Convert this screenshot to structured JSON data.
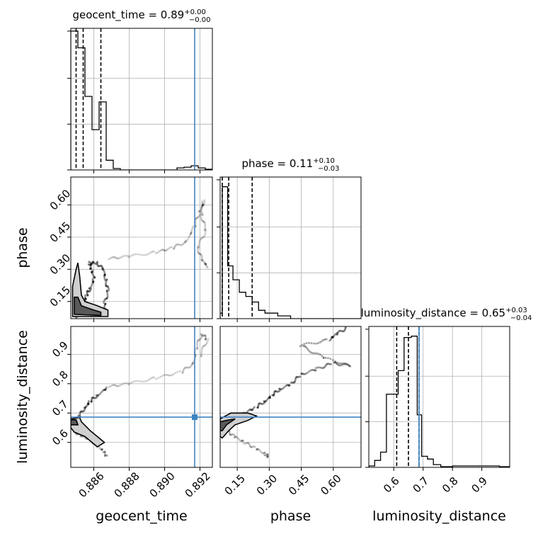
{
  "figure": {
    "type": "corner-plot",
    "colors": {
      "truth": "#3f84c2",
      "hist": "#000000",
      "grid": "#b0b0b0",
      "density": "#000000"
    }
  },
  "chart_data": {
    "type": "corner",
    "parameters": [
      "geocent_time",
      "phase",
      "luminosity_distance"
    ],
    "truths": {
      "geocent_time": 0.8917,
      "phase": null,
      "luminosity_distance": 0.686
    },
    "panels": [
      {
        "id": "hist-geocent_time",
        "type": "histogram",
        "title": {
          "main": "geocent_time = 0.89",
          "sup": "+0.00",
          "sub": "−0.00"
        },
        "xlim": [
          0.8847,
          0.8927
        ],
        "ymax": 1.0,
        "quantiles": [
          0.885,
          0.8854,
          0.8864
        ],
        "truth_x": 0.8917,
        "steps": [
          [
            0.8847,
            0.0
          ],
          [
            0.8847,
            1.0
          ],
          [
            0.8851,
            1.0
          ],
          [
            0.8851,
            0.88
          ],
          [
            0.8855,
            0.88
          ],
          [
            0.8855,
            0.53
          ],
          [
            0.8859,
            0.53
          ],
          [
            0.8859,
            0.29
          ],
          [
            0.8863,
            0.29
          ],
          [
            0.8863,
            0.49
          ],
          [
            0.8867,
            0.49
          ],
          [
            0.8867,
            0.07
          ],
          [
            0.8871,
            0.07
          ],
          [
            0.8871,
            0.01
          ],
          [
            0.8875,
            0.01
          ],
          [
            0.8875,
            0.0
          ],
          [
            0.8907,
            0.0
          ],
          [
            0.8907,
            0.015
          ],
          [
            0.8911,
            0.015
          ],
          [
            0.8911,
            0.02
          ],
          [
            0.8915,
            0.02
          ],
          [
            0.8915,
            0.03
          ],
          [
            0.8919,
            0.03
          ],
          [
            0.8919,
            0.015
          ],
          [
            0.8923,
            0.015
          ],
          [
            0.8923,
            0.005
          ],
          [
            0.8927,
            0.005
          ]
        ]
      },
      {
        "id": "hist-phase",
        "type": "histogram",
        "title": {
          "main": "phase = 0.11",
          "sup": "+0.10",
          "sub": "−0.03"
        },
        "xlim": [
          0.07,
          0.73
        ],
        "ymax": 1.0,
        "quantiles": [
          0.08,
          0.11,
          0.22
        ],
        "steps": [
          [
            0.07,
            0.0
          ],
          [
            0.07,
            0.04
          ],
          [
            0.08,
            0.04
          ],
          [
            0.08,
            0.95
          ],
          [
            0.105,
            0.95
          ],
          [
            0.105,
            0.38
          ],
          [
            0.13,
            0.38
          ],
          [
            0.13,
            0.28
          ],
          [
            0.16,
            0.28
          ],
          [
            0.16,
            0.19
          ],
          [
            0.19,
            0.19
          ],
          [
            0.19,
            0.16
          ],
          [
            0.22,
            0.16
          ],
          [
            0.22,
            0.12
          ],
          [
            0.25,
            0.12
          ],
          [
            0.25,
            0.06
          ],
          [
            0.28,
            0.06
          ],
          [
            0.28,
            0.04
          ],
          [
            0.34,
            0.04
          ],
          [
            0.34,
            0.02
          ],
          [
            0.4,
            0.02
          ],
          [
            0.4,
            0.0
          ],
          [
            0.73,
            0.0
          ]
        ]
      },
      {
        "id": "hist-luminosity_distance",
        "type": "histogram",
        "title": {
          "main": "luminosity_distance = 0.65",
          "sup": "+0.03",
          "sub": "−0.04"
        },
        "xlim": [
          0.515,
          0.995
        ],
        "ymax": 1.0,
        "quantiles": [
          0.61,
          0.65,
          0.686
        ],
        "truth_x": 0.686,
        "steps": [
          [
            0.515,
            0.0
          ],
          [
            0.515,
            0.01
          ],
          [
            0.535,
            0.01
          ],
          [
            0.535,
            0.05
          ],
          [
            0.555,
            0.05
          ],
          [
            0.555,
            0.11
          ],
          [
            0.575,
            0.11
          ],
          [
            0.575,
            0.53
          ],
          [
            0.615,
            0.53
          ],
          [
            0.615,
            0.7
          ],
          [
            0.635,
            0.7
          ],
          [
            0.635,
            0.94
          ],
          [
            0.66,
            0.94
          ],
          [
            0.66,
            0.95
          ],
          [
            0.68,
            0.95
          ],
          [
            0.68,
            0.38
          ],
          [
            0.695,
            0.38
          ],
          [
            0.695,
            0.08
          ],
          [
            0.715,
            0.08
          ],
          [
            0.715,
            0.06
          ],
          [
            0.735,
            0.06
          ],
          [
            0.735,
            0.02
          ],
          [
            0.76,
            0.02
          ],
          [
            0.76,
            0.005
          ],
          [
            0.8,
            0.005
          ],
          [
            0.8,
            0.01
          ],
          [
            0.96,
            0.01
          ],
          [
            0.96,
            0.005
          ],
          [
            0.995,
            0.005
          ]
        ]
      },
      {
        "id": "joint-geocent_time-phase",
        "type": "2d",
        "xlim": [
          0.8847,
          0.8927
        ],
        "ylim": [
          0.07,
          0.73
        ],
        "truth_x": 0.8917,
        "samples_path": [
          [
            0.885,
            0.08
          ],
          [
            0.8852,
            0.1
          ],
          [
            0.8854,
            0.14
          ],
          [
            0.8856,
            0.18
          ],
          [
            0.8858,
            0.21
          ],
          [
            0.886,
            0.26
          ],
          [
            0.8859,
            0.3
          ],
          [
            0.8857,
            0.33
          ],
          [
            0.8862,
            0.33
          ],
          [
            0.8865,
            0.3
          ],
          [
            0.8867,
            0.25
          ],
          [
            0.8868,
            0.2
          ],
          [
            0.8866,
            0.14
          ],
          [
            0.8867,
            0.1
          ]
        ],
        "sparse_path": [
          [
            0.8868,
            0.35
          ],
          [
            0.888,
            0.36
          ],
          [
            0.8895,
            0.38
          ],
          [
            0.8905,
            0.4
          ],
          [
            0.8912,
            0.43
          ],
          [
            0.8917,
            0.5
          ],
          [
            0.892,
            0.57
          ],
          [
            0.8922,
            0.62
          ],
          [
            0.8921,
            0.55
          ],
          [
            0.8923,
            0.48
          ],
          [
            0.8919,
            0.4
          ],
          [
            0.8921,
            0.34
          ],
          [
            0.8925,
            0.31
          ]
        ],
        "contour_outer": [
          [
            0.8848,
            0.08
          ],
          [
            0.8848,
            0.22
          ],
          [
            0.885,
            0.3
          ],
          [
            0.8851,
            0.33
          ],
          [
            0.8852,
            0.27
          ],
          [
            0.8853,
            0.18
          ],
          [
            0.8855,
            0.15
          ],
          [
            0.8862,
            0.13
          ],
          [
            0.8868,
            0.11
          ],
          [
            0.8868,
            0.08
          ],
          [
            0.8848,
            0.08
          ]
        ],
        "contour_inner": [
          [
            0.8849,
            0.09
          ],
          [
            0.8849,
            0.17
          ],
          [
            0.8851,
            0.17
          ],
          [
            0.8853,
            0.13
          ],
          [
            0.886,
            0.11
          ],
          [
            0.8864,
            0.1
          ],
          [
            0.8864,
            0.085
          ],
          [
            0.8849,
            0.09
          ]
        ]
      },
      {
        "id": "joint-geocent_time-luminosity_distance",
        "type": "2d",
        "xlim": [
          0.8847,
          0.8927
        ],
        "ylim": [
          0.515,
          0.995
        ],
        "truth_x": 0.8917,
        "truth_y": 0.686,
        "samples_path": [
          [
            0.8849,
            0.66
          ],
          [
            0.8852,
            0.69
          ],
          [
            0.8855,
            0.72
          ],
          [
            0.8858,
            0.74
          ],
          [
            0.8862,
            0.76
          ],
          [
            0.8868,
            0.79
          ]
        ],
        "sparse_path": [
          [
            0.8868,
            0.79
          ],
          [
            0.888,
            0.8
          ],
          [
            0.8895,
            0.82
          ],
          [
            0.891,
            0.84
          ],
          [
            0.8916,
            0.87
          ],
          [
            0.8918,
            0.92
          ],
          [
            0.8921,
            0.97
          ],
          [
            0.8924,
            0.95
          ],
          [
            0.892,
            0.89
          ]
        ],
        "lower_path": [
          [
            0.8849,
            0.64
          ],
          [
            0.8853,
            0.62
          ],
          [
            0.8858,
            0.61
          ],
          [
            0.8862,
            0.59
          ],
          [
            0.8865,
            0.57
          ],
          [
            0.8868,
            0.55
          ]
        ],
        "contour_outer": [
          [
            0.8847,
            0.65
          ],
          [
            0.8847,
            0.68
          ],
          [
            0.8852,
            0.685
          ],
          [
            0.8853,
            0.67
          ],
          [
            0.8858,
            0.64
          ],
          [
            0.8866,
            0.6
          ],
          [
            0.8862,
            0.585
          ],
          [
            0.8855,
            0.62
          ],
          [
            0.8849,
            0.635
          ],
          [
            0.8847,
            0.65
          ]
        ],
        "contour_inner": [
          [
            0.8847,
            0.66
          ],
          [
            0.8847,
            0.677
          ],
          [
            0.885,
            0.677
          ],
          [
            0.8851,
            0.66
          ],
          [
            0.8847,
            0.66
          ]
        ]
      },
      {
        "id": "joint-phase-luminosity_distance",
        "type": "2d",
        "xlim": [
          0.07,
          0.73
        ],
        "ylim": [
          0.515,
          0.995
        ],
        "truth_y": 0.686,
        "samples_path": [
          [
            0.08,
            0.66
          ],
          [
            0.12,
            0.68
          ],
          [
            0.18,
            0.7
          ],
          [
            0.24,
            0.72
          ],
          [
            0.28,
            0.74
          ],
          [
            0.31,
            0.76
          ],
          [
            0.35,
            0.78
          ],
          [
            0.4,
            0.8
          ],
          [
            0.45,
            0.83
          ],
          [
            0.52,
            0.85
          ],
          [
            0.6,
            0.87
          ],
          [
            0.68,
            0.86
          ],
          [
            0.55,
            0.89
          ],
          [
            0.45,
            0.93
          ],
          [
            0.58,
            0.95
          ],
          [
            0.62,
            0.97
          ],
          [
            0.66,
            0.99
          ]
        ],
        "lower_path": [
          [
            0.1,
            0.64
          ],
          [
            0.14,
            0.62
          ],
          [
            0.18,
            0.6
          ],
          [
            0.24,
            0.58
          ],
          [
            0.28,
            0.56
          ],
          [
            0.3,
            0.55
          ]
        ],
        "contour_outer": [
          [
            0.07,
            0.62
          ],
          [
            0.07,
            0.68
          ],
          [
            0.12,
            0.7
          ],
          [
            0.2,
            0.7
          ],
          [
            0.24,
            0.69
          ],
          [
            0.2,
            0.675
          ],
          [
            0.14,
            0.66
          ],
          [
            0.11,
            0.64
          ],
          [
            0.08,
            0.615
          ],
          [
            0.07,
            0.62
          ]
        ],
        "contour_inner": [
          [
            0.07,
            0.64
          ],
          [
            0.07,
            0.67
          ],
          [
            0.1,
            0.675
          ],
          [
            0.14,
            0.68
          ],
          [
            0.1,
            0.66
          ],
          [
            0.08,
            0.64
          ],
          [
            0.07,
            0.64
          ]
        ]
      }
    ],
    "xticks": {
      "geocent_time": [
        0.886,
        0.888,
        0.89,
        0.892
      ],
      "phase": [
        0.15,
        0.3,
        0.45,
        0.6
      ],
      "luminosity_distance": [
        0.6,
        0.7,
        0.8,
        0.9
      ]
    },
    "yticks": {
      "phase": [
        0.15,
        0.3,
        0.45,
        0.6
      ],
      "luminosity_distance": [
        0.6,
        0.7,
        0.8,
        0.9
      ]
    },
    "xtick_labels": {
      "geocent_time": [
        "0.886",
        "0.888",
        "0.890",
        "0.892"
      ],
      "phase": [
        "0.15",
        "0.30",
        "0.45",
        "0.60"
      ],
      "luminosity_distance": [
        "0.6",
        "0.7",
        "0.8",
        "0.9"
      ]
    },
    "ytick_labels": {
      "phase": [
        "0.15",
        "0.30",
        "0.45",
        "0.60"
      ],
      "luminosity_distance": [
        "0.6",
        "0.7",
        "0.8",
        "0.9"
      ]
    },
    "axis_labels": {
      "x": [
        "geocent_time",
        "phase",
        "luminosity_distance"
      ],
      "y": [
        "phase",
        "luminosity_distance"
      ]
    },
    "grid": true
  }
}
